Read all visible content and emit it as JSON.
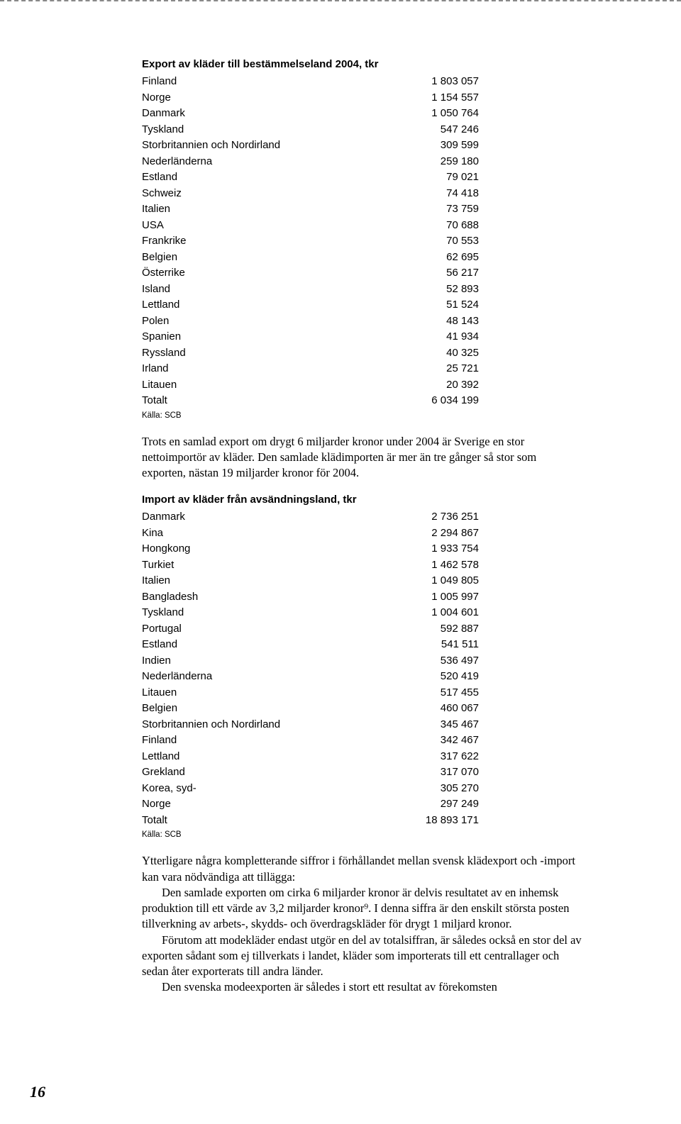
{
  "export_table": {
    "title": "Export av kläder till bestämmelseland 2004, tkr",
    "rows": [
      {
        "label": "Finland",
        "value": "1 803 057"
      },
      {
        "label": "Norge",
        "value": "1 154 557"
      },
      {
        "label": "Danmark",
        "value": "1 050 764"
      },
      {
        "label": "Tyskland",
        "value": "547 246"
      },
      {
        "label": "Storbritannien och Nordirland",
        "value": "309 599"
      },
      {
        "label": "Nederländerna",
        "value": "259 180"
      },
      {
        "label": "Estland",
        "value": "79 021"
      },
      {
        "label": "Schweiz",
        "value": "74 418"
      },
      {
        "label": "Italien",
        "value": "73 759"
      },
      {
        "label": "USA",
        "value": "70 688"
      },
      {
        "label": "Frankrike",
        "value": "70 553"
      },
      {
        "label": "Belgien",
        "value": "62 695"
      },
      {
        "label": "Österrike",
        "value": "56 217"
      },
      {
        "label": "Island",
        "value": "52 893"
      },
      {
        "label": "Lettland",
        "value": "51 524"
      },
      {
        "label": "Polen",
        "value": "48 143"
      },
      {
        "label": "Spanien",
        "value": "41 934"
      },
      {
        "label": "Ryssland",
        "value": "40 325"
      },
      {
        "label": "Irland",
        "value": "25 721"
      },
      {
        "label": "Litauen",
        "value": "20 392"
      },
      {
        "label": "Totalt",
        "value": "6 034 199"
      }
    ],
    "source": "Källa: SCB"
  },
  "paragraph1": "Trots en samlad export om drygt 6 miljarder kronor under 2004 är Sverige en stor nettoimportör av kläder. Den samlade klädimporten är mer än tre gånger så stor som exporten, nästan 19 miljarder kronor för 2004.",
  "import_table": {
    "title": "Import av kläder från avsändningsland, tkr",
    "rows": [
      {
        "label": "Danmark",
        "value": "2 736 251"
      },
      {
        "label": "Kina",
        "value": "2 294 867"
      },
      {
        "label": "Hongkong",
        "value": "1 933 754"
      },
      {
        "label": "Turkiet",
        "value": "1 462 578"
      },
      {
        "label": "Italien",
        "value": "1 049 805"
      },
      {
        "label": "Bangladesh",
        "value": "1 005 997"
      },
      {
        "label": "Tyskland",
        "value": "1 004 601"
      },
      {
        "label": "Portugal",
        "value": "592 887"
      },
      {
        "label": "Estland",
        "value": "541 511"
      },
      {
        "label": "Indien",
        "value": "536 497"
      },
      {
        "label": "Nederländerna",
        "value": "520 419"
      },
      {
        "label": "Litauen",
        "value": "517 455"
      },
      {
        "label": "Belgien",
        "value": "460 067"
      },
      {
        "label": "Storbritannien och Nordirland",
        "value": "345 467"
      },
      {
        "label": "Finland",
        "value": "342 467"
      },
      {
        "label": "Lettland",
        "value": "317 622"
      },
      {
        "label": "Grekland",
        "value": "317 070"
      },
      {
        "label": "Korea, syd-",
        "value": "305 270"
      },
      {
        "label": "Norge",
        "value": "297 249"
      },
      {
        "label": "Totalt",
        "value": "18 893 171"
      }
    ],
    "source": "Källa: SCB"
  },
  "paragraph2_line1": "Ytterligare några kompletterande siffror i förhållandet mellan svensk klädexport och -import kan vara nödvändiga att tillägga:",
  "paragraph2_line2": "Den samlade exporten om cirka 6 miljarder kronor är delvis resultatet av en inhemsk produktion till ett värde av 3,2 miljarder kronor⁹. I denna siffra är den enskilt största posten tillverkning av arbets-, skydds- och överdragskläder för drygt 1 miljard kronor.",
  "paragraph2_line3": "Förutom att modekläder endast utgör en del av totalsiffran, är således också en stor del av exporten sådant som ej tillverkats i landet, kläder som importerats till ett centrallager och sedan åter exporterats till andra länder.",
  "paragraph2_line4": "Den svenska modeexporten är således i stort ett resultat av förekomsten",
  "page_number": "16",
  "colors": {
    "text": "#000000",
    "background": "#ffffff",
    "dash_border": "#888888"
  },
  "typography": {
    "body_font": "Georgia, Times New Roman, serif",
    "table_font": "Arial, Helvetica, sans-serif",
    "table_title_size": 15,
    "table_row_size": 15,
    "body_size": 16.5,
    "source_size": 11.5,
    "page_number_size": 22
  }
}
